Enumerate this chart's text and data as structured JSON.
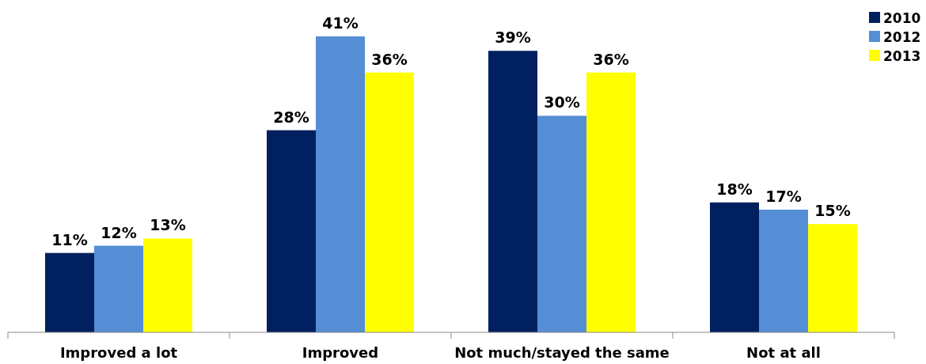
{
  "chart_data": {
    "type": "bar",
    "categories": [
      "Improved a lot",
      "Improved",
      "Not much/stayed the same",
      "Not at all"
    ],
    "series": [
      {
        "name": "2010",
        "color": "#002060",
        "values": [
          11,
          28,
          39,
          18
        ],
        "value_labels": [
          "11%",
          "28%",
          "39%",
          "18%"
        ]
      },
      {
        "name": "2012",
        "color": "#558ed5",
        "values": [
          12,
          41,
          30,
          17
        ],
        "value_labels": [
          "12%",
          "41%",
          "30%",
          "17%"
        ]
      },
      {
        "name": "2013",
        "color": "#ffff00",
        "values": [
          13,
          36,
          36,
          15
        ],
        "value_labels": [
          "13%",
          "36%",
          "36%",
          "15%"
        ]
      }
    ],
    "legend": "top right",
    "grid": false
  }
}
